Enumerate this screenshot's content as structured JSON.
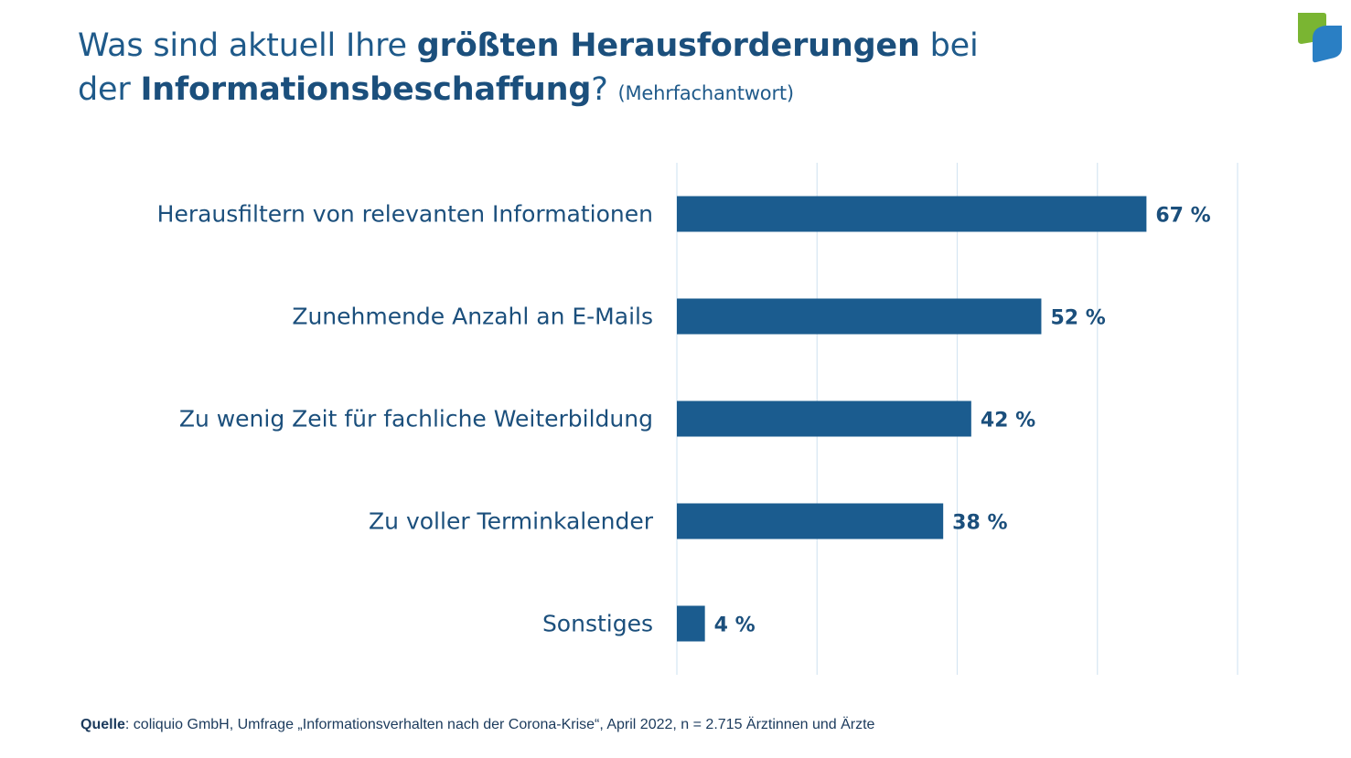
{
  "title": {
    "part1": "Was sind aktuell Ihre ",
    "bold1": "größten Herausforderungen",
    "part2": " bei",
    "part3": "der ",
    "bold2": "Informationsbeschaffung",
    "part4": "? ",
    "subtitle": "(Mehrfachantwort)"
  },
  "source": {
    "label": "Quelle",
    "text": ": coliquio GmbH, Umfrage „Informationsverhalten nach der Corona-Krise“, April 2022, n = 2.715 Ärztinnen und Ärzte"
  },
  "colors": {
    "bar": "#1b5c8f",
    "grid": "#d6e6f2",
    "logo_green": "#7ab532",
    "logo_blue": "#2a7fc4"
  },
  "chart_data": {
    "type": "bar",
    "orientation": "horizontal",
    "categories": [
      "Herausfiltern von relevanten Informationen",
      "Zunehmende Anzahl an E-Mails",
      "Zu wenig Zeit für fachliche Weiterbildung",
      "Zu voller Terminkalender",
      "Sonstiges"
    ],
    "values": [
      67,
      52,
      42,
      38,
      4
    ],
    "value_labels": [
      "67 %",
      "52 %",
      "42 %",
      "38 %",
      "4 %"
    ],
    "xlim": [
      0,
      80
    ],
    "grid": true
  }
}
